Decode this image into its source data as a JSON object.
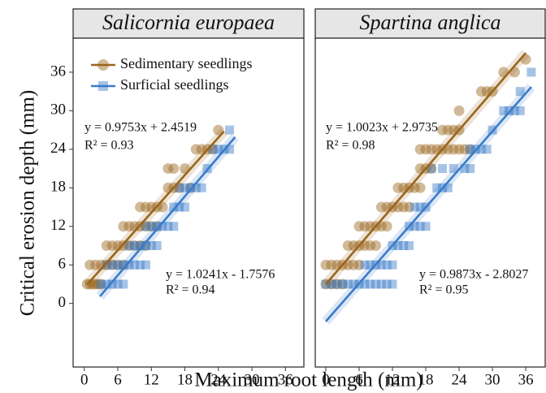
{
  "chart_data": [
    {
      "type": "scatter",
      "title": "Salicornia europaea",
      "xlabel": "Maximum root length (mm)",
      "ylabel": "Critical erosion depth (mm)",
      "xlim": [
        -2,
        39.3
      ],
      "ylim": [
        -9.9,
        41.3
      ],
      "xticks": [
        0,
        6,
        12,
        18,
        24,
        30,
        36
      ],
      "yticks": [
        0,
        6,
        12,
        18,
        24,
        30,
        36
      ],
      "legend": "top-left",
      "series": [
        {
          "name": "Sedimentary seedlings",
          "color": "#9a661c",
          "marker": "circle",
          "x": [
            0.5,
            1,
            1.5,
            2,
            2.5,
            3,
            1,
            2,
            3,
            4,
            5,
            6,
            7,
            4,
            5,
            6,
            7,
            8,
            9,
            10,
            11,
            7,
            8,
            9,
            10,
            11,
            12,
            13,
            10,
            11,
            12,
            13,
            14,
            15,
            16,
            17,
            19,
            15,
            16,
            18,
            20,
            21,
            22,
            23,
            24
          ],
          "values": [
            3,
            3,
            3,
            3,
            3,
            3,
            6,
            6,
            6,
            6,
            6,
            6,
            6,
            9,
            9,
            9,
            9,
            9,
            9,
            9,
            9,
            12,
            12,
            12,
            12,
            12,
            12,
            12,
            15,
            15,
            15,
            15,
            15,
            18,
            18,
            18,
            18,
            21,
            21,
            21,
            24,
            24,
            24,
            24,
            27
          ]
        },
        {
          "name": "Surficial seedlings",
          "color": "#3a7bc8",
          "marker": "square",
          "x": [
            3,
            4,
            5,
            6,
            7,
            4,
            5,
            6,
            7,
            8,
            9,
            10,
            11,
            8,
            9,
            10,
            11,
            12,
            13,
            11,
            12,
            13,
            14,
            15,
            16,
            16,
            17,
            18,
            17,
            18,
            19,
            20,
            21,
            22,
            23,
            24,
            25,
            26,
            26
          ],
          "values": [
            3,
            3,
            3,
            3,
            3,
            6,
            6,
            6,
            6,
            6,
            6,
            6,
            6,
            9,
            9,
            9,
            9,
            9,
            9,
            12,
            12,
            12,
            12,
            12,
            12,
            15,
            15,
            15,
            18,
            18,
            18,
            18,
            18,
            21,
            24,
            24,
            24,
            24,
            27
          ]
        }
      ],
      "lines": [
        {
          "color": "#9a661c",
          "x": [
            0.5,
            25
          ],
          "values": [
            2.94,
            26.8
          ]
        },
        {
          "color": "#3a7bc8",
          "x": [
            2.8,
            27
          ],
          "values": [
            1.1,
            25.9
          ]
        }
      ],
      "annotations": [
        {
          "text": "y = 0.9753x + 2.4519",
          "color": "#9a661c"
        },
        {
          "text": "R² = 0.93",
          "color": "#9a661c"
        },
        {
          "text": "y = 1.0241x - 1.7576",
          "color": "#3a7bc8"
        },
        {
          "text": "R² = 0.94",
          "color": "#3a7bc8"
        }
      ]
    },
    {
      "type": "scatter",
      "title": "Spartina anglica",
      "xlim": [
        -1.9,
        39.5
      ],
      "ylim": [
        -9.9,
        41.3
      ],
      "xticks": [
        0,
        6,
        12,
        18,
        24,
        30,
        36
      ],
      "series": [
        {
          "color": "#9a661c",
          "marker": "circle",
          "x": [
            0,
            1,
            2,
            3,
            0,
            1,
            2,
            3,
            4,
            5,
            6,
            4,
            5,
            6,
            7,
            8,
            9,
            6,
            7,
            8,
            9,
            10,
            11,
            10,
            11,
            12,
            13,
            14,
            15,
            13,
            14,
            15,
            16,
            17,
            17,
            18,
            19,
            17,
            18,
            19,
            20,
            21,
            22,
            23,
            24,
            25,
            26,
            21,
            22,
            23,
            24,
            24,
            28,
            29,
            30,
            32,
            34,
            36
          ],
          "values": [
            3,
            3,
            3,
            3,
            6,
            6,
            6,
            6,
            6,
            6,
            6,
            9,
            9,
            9,
            9,
            9,
            9,
            12,
            12,
            12,
            12,
            12,
            12,
            15,
            15,
            15,
            15,
            15,
            15,
            18,
            18,
            18,
            18,
            18,
            21,
            21,
            21,
            24,
            24,
            24,
            24,
            24,
            24,
            24,
            24,
            24,
            24,
            27,
            27,
            27,
            27,
            30,
            33,
            33,
            33,
            36,
            36,
            38
          ]
        },
        {
          "color": "#3a7bc8",
          "marker": "square",
          "x": [
            0,
            1,
            2,
            3,
            4,
            5,
            6,
            7,
            8,
            9,
            10,
            11,
            12,
            7,
            8,
            9,
            10,
            11,
            12,
            12,
            13,
            14,
            15,
            15,
            16,
            17,
            18,
            16,
            17,
            18,
            20,
            21,
            22,
            19,
            21,
            23,
            25,
            26,
            26,
            27,
            28,
            29,
            30,
            32,
            33,
            34,
            35,
            35,
            37
          ],
          "values": [
            3,
            3,
            3,
            3,
            3,
            3,
            3,
            3,
            3,
            3,
            3,
            3,
            3,
            6,
            6,
            6,
            6,
            6,
            6,
            9,
            9,
            9,
            9,
            12,
            12,
            12,
            12,
            15,
            15,
            15,
            18,
            18,
            18,
            21,
            21,
            21,
            21,
            21,
            24,
            24,
            24,
            24,
            27,
            30,
            30,
            30,
            30,
            33,
            36
          ]
        }
      ],
      "lines": [
        {
          "color": "#9a661c",
          "x": [
            0,
            36
          ],
          "values": [
            3.0,
            39.0
          ]
        },
        {
          "color": "#3a7bc8",
          "x": [
            0,
            37
          ],
          "values": [
            -2.8,
            33.7
          ]
        }
      ],
      "annotations": [
        {
          "text": "y = 1.0023x + 2.9735",
          "color": "#9a661c"
        },
        {
          "text": "R² = 0.98",
          "color": "#9a661c"
        },
        {
          "text": "y = 0.9873x - 2.8027",
          "color": "#3a7bc8"
        },
        {
          "text": "R² = 0.95",
          "color": "#3a7bc8"
        }
      ]
    }
  ]
}
